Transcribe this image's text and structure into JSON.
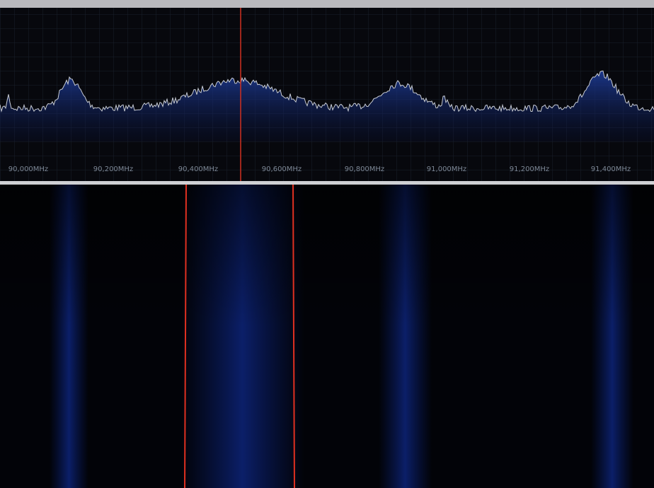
{
  "spectrum": {
    "frequency_labels": [
      "90,000MHz",
      "90,200MHz",
      "90,400MHz",
      "90,600MHz",
      "90,800MHz",
      "91,000MHz",
      "91,200MHz",
      "91,400MHz"
    ]
  }
}
